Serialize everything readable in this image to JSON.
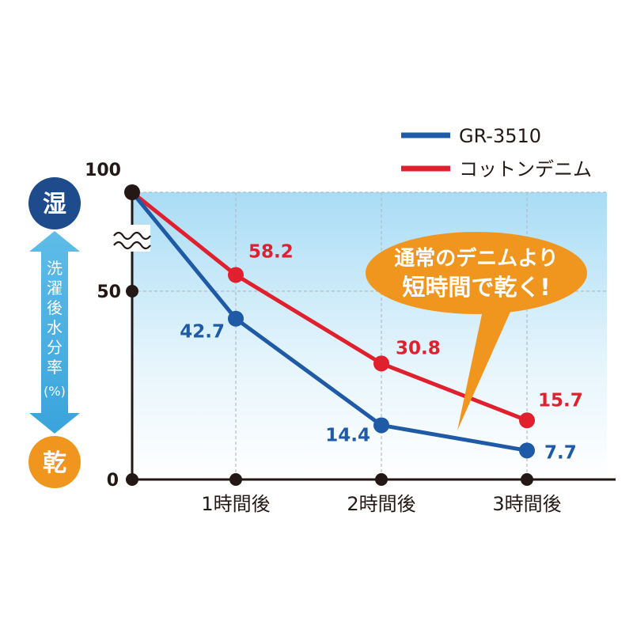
{
  "chart_data": {
    "type": "line",
    "categories": [
      "",
      "1時間後",
      "2時間後",
      "3時間後"
    ],
    "series": [
      {
        "name": "GR-3510",
        "color": "#1f5aa6",
        "values": [
          100,
          42.7,
          14.4,
          7.7
        ],
        "labels": [
          "",
          "42.7",
          "14.4",
          "7.7"
        ]
      },
      {
        "name": "コットンデニム",
        "color": "#e0202d",
        "values": [
          100,
          58.2,
          30.8,
          15.7
        ],
        "labels": [
          "",
          "58.2",
          "30.8",
          "15.7"
        ]
      }
    ],
    "y_ticks": [
      {
        "value": 0,
        "label": "0"
      },
      {
        "value": 50,
        "label": "50"
      },
      {
        "value": 100,
        "label": "100"
      }
    ],
    "ylabel_lines": [
      "洗",
      "濯",
      "後",
      "水",
      "分",
      "率",
      "(%)"
    ],
    "y_top_label": "湿",
    "y_bottom_label": "乾",
    "callout_lines": [
      "通常のデニムより",
      "短時間で乾く!"
    ],
    "axis_break": true,
    "legend_position": "top-right",
    "grid": true
  },
  "colors": {
    "blue": "#1f5aa6",
    "red": "#e0202d",
    "orange": "#f0961e",
    "navy": "#1d4b8c",
    "arrow": "#58b5e6",
    "axis": "#231815"
  }
}
